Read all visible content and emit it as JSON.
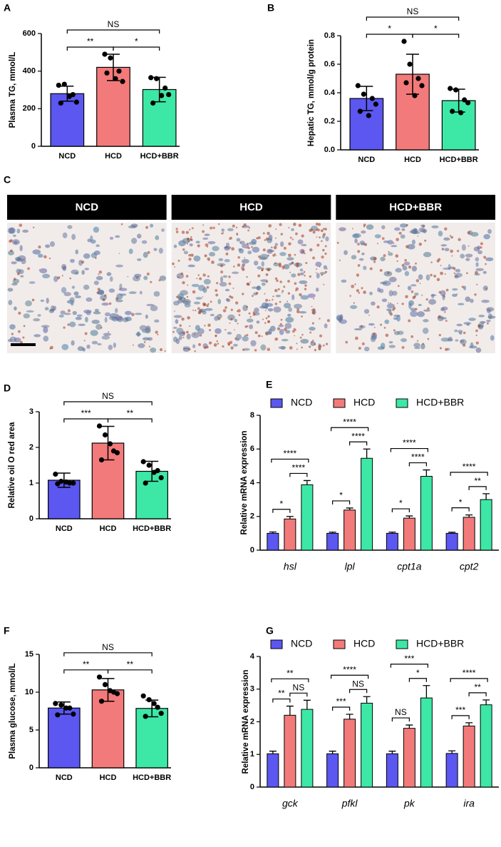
{
  "chart_data": [
    {
      "type": "bar",
      "panel": "A",
      "ylabel": "Plasma TG, mmol/L",
      "categories": [
        "NCD",
        "HCD",
        "HCD+BBR"
      ],
      "values": [
        280,
        420,
        302
      ],
      "errors": [
        40,
        70,
        65
      ],
      "points": [
        [
          325,
          330,
          275,
          235,
          230,
          265
        ],
        [
          490,
          470,
          400,
          345,
          390,
          360
        ],
        [
          365,
          360,
          310,
          275,
          230,
          270
        ]
      ],
      "colors": [
        "#5b57f0",
        "#f37a7a",
        "#3de8a6"
      ],
      "ylim": [
        0,
        600
      ],
      "yticks": [
        0,
        200,
        400,
        600
      ],
      "annotations": [
        "NS",
        "**",
        "*"
      ]
    },
    {
      "type": "bar",
      "panel": "B",
      "ylabel": "Hepatic TG, mmol/g protein",
      "categories": [
        "NCD",
        "HCD",
        "HCD+BBR"
      ],
      "values": [
        0.36,
        0.53,
        0.345
      ],
      "errors": [
        0.085,
        0.14,
        0.08
      ],
      "points": [
        [
          0.45,
          0.39,
          0.36,
          0.32,
          0.27,
          0.24
        ],
        [
          0.76,
          0.6,
          0.5,
          0.45,
          0.47,
          0.38
        ],
        [
          0.43,
          0.42,
          0.35,
          0.33,
          0.27,
          0.26
        ]
      ],
      "colors": [
        "#5b57f0",
        "#f37a7a",
        "#3de8a6"
      ],
      "ylim": [
        0,
        0.8
      ],
      "yticks": [
        {
          "value": 0,
          "label": "0.0"
        },
        0.2,
        0.4,
        0.6,
        0.8
      ],
      "annotations": [
        "NS",
        "*",
        "*"
      ]
    },
    {
      "type": "image",
      "panel": "C",
      "titles": [
        "NCD",
        "HCD",
        "HCD+BBR"
      ]
    },
    {
      "type": "bar",
      "panel": "D",
      "ylabel": "Relative oil O red area",
      "categories": [
        "NCD",
        "HCD",
        "HCD+BBR"
      ],
      "values": [
        1.08,
        2.12,
        1.33
      ],
      "errors": [
        0.2,
        0.47,
        0.28
      ],
      "points": [
        [
          1.25,
          1.05,
          1.0,
          1.0,
          0.98,
          1.03
        ],
        [
          2.6,
          2.35,
          1.9,
          1.85,
          1.65,
          2.1
        ],
        [
          1.6,
          1.5,
          1.35,
          1.15,
          1.0,
          1.3
        ]
      ],
      "colors": [
        "#5b57f0",
        "#f37a7a",
        "#3de8a6"
      ],
      "ylim": [
        0,
        3
      ],
      "yticks": [
        0,
        1,
        2,
        3
      ],
      "annotations": [
        "NS",
        "***",
        "**"
      ]
    },
    {
      "type": "grouped_bar",
      "panel": "E",
      "ylabel": "Relative mRNA expression",
      "categories": [
        "hsl",
        "lpl",
        "cpt1a",
        "cpt2"
      ],
      "series": [
        {
          "name": "NCD",
          "color": "#5b57f0",
          "values": [
            1.0,
            1.0,
            1.0,
            1.0
          ],
          "errors": [
            0.08,
            0.07,
            0.07,
            0.06
          ]
        },
        {
          "name": "HCD",
          "color": "#f37a7a",
          "values": [
            1.85,
            2.38,
            1.9,
            1.95
          ],
          "errors": [
            0.15,
            0.12,
            0.13,
            0.14
          ]
        },
        {
          "name": "HCD+BBR",
          "color": "#3de8a6",
          "values": [
            3.88,
            5.45,
            4.38,
            3.0
          ],
          "errors": [
            0.25,
            0.55,
            0.38,
            0.35
          ]
        }
      ],
      "ylim": [
        0,
        8
      ],
      "yticks": [
        0,
        2,
        4,
        6,
        8
      ],
      "annotations": [
        [
          "****",
          "****",
          "*"
        ],
        [
          "****",
          "****",
          "*"
        ],
        [
          "****",
          "****",
          "*"
        ],
        [
          "****",
          "**",
          "*"
        ]
      ]
    },
    {
      "type": "bar",
      "panel": "F",
      "ylabel": "Plasma glucose, mmol/L",
      "categories": [
        "NCD",
        "HCD",
        "HCD+BBR"
      ],
      "values": [
        7.9,
        10.3,
        7.85
      ],
      "errors": [
        0.8,
        1.5,
        1.1
      ],
      "points": [
        [
          8.5,
          8.3,
          7.9,
          7.1,
          7.0,
          7.9
        ],
        [
          12.0,
          11.0,
          10.0,
          9.8,
          8.8,
          10.2
        ],
        [
          9.5,
          9.0,
          8.0,
          7.2,
          6.8,
          8.5
        ]
      ],
      "colors": [
        "#5b57f0",
        "#f37a7a",
        "#3de8a6"
      ],
      "ylim": [
        0,
        15
      ],
      "yticks": [
        0,
        5,
        10,
        15
      ],
      "annotations": [
        "NS",
        "**",
        "**"
      ]
    },
    {
      "type": "grouped_bar",
      "panel": "G",
      "ylabel": "Relative mRNA expression",
      "categories": [
        "gck",
        "pfkl",
        "pk",
        "ira"
      ],
      "series": [
        {
          "name": "NCD",
          "color": "#5b57f0",
          "values": [
            1.02,
            1.02,
            1.02,
            1.03
          ],
          "errors": [
            0.08,
            0.08,
            0.08,
            0.08
          ]
        },
        {
          "name": "HCD",
          "color": "#f37a7a",
          "values": [
            2.2,
            2.08,
            1.8,
            1.87
          ],
          "errors": [
            0.28,
            0.15,
            0.1,
            0.1
          ]
        },
        {
          "name": "HCD+BBR",
          "color": "#3de8a6",
          "values": [
            2.38,
            2.57,
            2.73,
            2.52
          ],
          "errors": [
            0.28,
            0.2,
            0.38,
            0.15
          ]
        }
      ],
      "ylim": [
        0,
        4
      ],
      "yticks": [
        0,
        1,
        2,
        3,
        4
      ],
      "annotations": [
        [
          "**",
          "NS",
          "**"
        ],
        [
          "****",
          "NS",
          "***"
        ],
        [
          "***",
          "*",
          "NS"
        ],
        [
          "****",
          "**",
          "***"
        ]
      ]
    }
  ]
}
